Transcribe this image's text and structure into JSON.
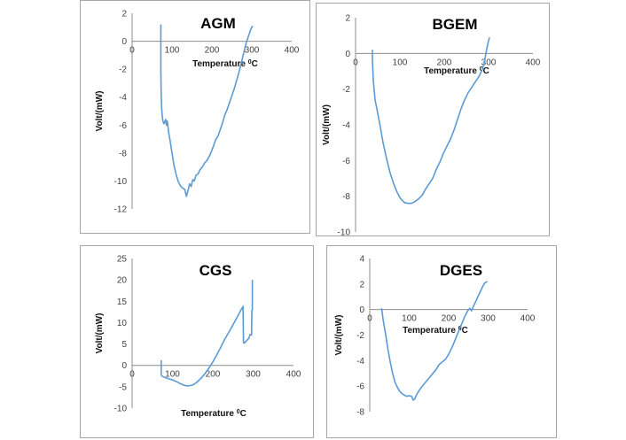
{
  "chart_data": [
    {
      "id": "agm",
      "type": "line",
      "title": "AGM",
      "xlabel": "Temperature",
      "xlabel_unit": "0C",
      "ylabel": "Volt/(mW)",
      "xlim": [
        0,
        400
      ],
      "ylim": [
        -12,
        2
      ],
      "xticks": [
        "0",
        "100",
        "200",
        "300",
        "400"
      ],
      "yticks": [
        "2",
        "0",
        "-2",
        "-4",
        "-6",
        "-8",
        "-10",
        "-12"
      ],
      "series": [
        {
          "color": "#5b9bd5",
          "x": [
            72,
            72,
            72,
            73,
            74,
            76,
            78,
            80,
            84,
            86,
            88,
            92,
            95,
            100,
            105,
            110,
            115,
            120,
            126,
            132,
            136,
            140,
            144,
            148,
            152,
            156,
            160,
            165,
            170,
            176,
            182,
            188,
            194,
            200,
            205,
            210,
            215,
            220,
            226,
            232,
            238,
            244,
            250,
            256,
            262,
            268,
            274,
            280,
            286,
            292,
            298,
            302
          ],
          "y": [
            1.2,
            0,
            -2.2,
            -3.8,
            -4.8,
            -5.5,
            -5.8,
            -5.9,
            -5.6,
            -6.0,
            -5.7,
            -6.6,
            -7.1,
            -8.0,
            -8.9,
            -9.5,
            -10.0,
            -10.3,
            -10.5,
            -10.6,
            -11.1,
            -10.7,
            -10.2,
            -10.4,
            -9.9,
            -10.0,
            -9.6,
            -9.5,
            -9.2,
            -9.0,
            -8.7,
            -8.5,
            -8.2,
            -7.8,
            -7.4,
            -7.0,
            -6.8,
            -6.4,
            -5.9,
            -5.3,
            -4.9,
            -4.4,
            -3.9,
            -3.4,
            -2.8,
            -2.2,
            -1.5,
            -0.8,
            -0.1,
            0.4,
            0.9,
            1.1
          ]
        }
      ]
    },
    {
      "id": "bgem",
      "type": "line",
      "title": "BGEM",
      "xlabel": "Temperature",
      "xlabel_unit": "0C",
      "ylabel": "Volt/(mW)",
      "xlim": [
        0,
        400
      ],
      "ylim": [
        -10,
        2
      ],
      "xticks": [
        "0",
        "100",
        "200",
        "300",
        "400"
      ],
      "yticks": [
        "2",
        "0",
        "-2",
        "-4",
        "-6",
        "-8",
        "-10"
      ],
      "series": [
        {
          "color": "#5b9bd5",
          "x": [
            38,
            38,
            40,
            44,
            48,
            55,
            62,
            70,
            78,
            86,
            94,
            102,
            110,
            118,
            126,
            134,
            142,
            150,
            158,
            166,
            174,
            182,
            190,
            198,
            206,
            214,
            222,
            230,
            238,
            246,
            254,
            262,
            270,
            278,
            284,
            290,
            294,
            298,
            302
          ],
          "y": [
            0.2,
            -0.3,
            -1.5,
            -2.6,
            -3.1,
            -4.0,
            -5.0,
            -5.9,
            -6.7,
            -7.3,
            -7.8,
            -8.15,
            -8.35,
            -8.4,
            -8.4,
            -8.3,
            -8.15,
            -7.95,
            -7.6,
            -7.3,
            -7.0,
            -6.5,
            -6.1,
            -5.6,
            -5.2,
            -4.8,
            -4.3,
            -3.7,
            -3.1,
            -2.6,
            -2.2,
            -1.9,
            -1.6,
            -1.3,
            -1.0,
            -0.6,
            0.0,
            0.5,
            0.9
          ]
        }
      ]
    },
    {
      "id": "cgs",
      "type": "line",
      "title": "CGS",
      "xlabel": "Temperature",
      "xlabel_unit": "0C",
      "ylabel": "Volt/(mW)",
      "xlim": [
        0,
        400
      ],
      "ylim": [
        -10,
        25
      ],
      "xticks": [
        "0",
        "100",
        "200",
        "300",
        "400"
      ],
      "yticks": [
        "25",
        "20",
        "15",
        "10",
        "5",
        "0",
        "-5",
        "-10"
      ],
      "series": [
        {
          "color": "#5b9bd5",
          "x": [
            72,
            72,
            74,
            80,
            90,
            100,
            110,
            120,
            130,
            140,
            150,
            160,
            170,
            180,
            190,
            200,
            210,
            220,
            230,
            240,
            250,
            260,
            270,
            275,
            276,
            278,
            284,
            290,
            292,
            296,
            297,
            298,
            298
          ],
          "y": [
            1.2,
            -2.2,
            -2.5,
            -2.8,
            -3.1,
            -3.4,
            -3.8,
            -4.3,
            -4.7,
            -4.8,
            -4.6,
            -4.0,
            -3.1,
            -2.0,
            -0.7,
            0.8,
            2.5,
            4.3,
            6.2,
            7.8,
            9.5,
            11.2,
            13.0,
            13.8,
            5.3,
            5.2,
            5.8,
            6.4,
            7.2,
            7.1,
            12.8,
            13.0,
            20.0
          ]
        }
      ]
    },
    {
      "id": "dges",
      "type": "line",
      "title": "DGES",
      "xlabel": "Temperature",
      "xlabel_unit": "0C",
      "ylabel": "Volt/(mW)",
      "xlim": [
        0,
        400
      ],
      "ylim": [
        -8,
        4
      ],
      "xticks": [
        "0",
        "100",
        "200",
        "300",
        "400"
      ],
      "yticks": [
        "4",
        "2",
        "0",
        "-2",
        "-4",
        "-6",
        "-8"
      ],
      "series": [
        {
          "color": "#5b9bd5",
          "x": [
            30,
            34,
            40,
            46,
            52,
            58,
            64,
            70,
            76,
            82,
            88,
            94,
            100,
            106,
            110,
            114,
            120,
            128,
            136,
            144,
            152,
            160,
            168,
            176,
            184,
            192,
            200,
            208,
            216,
            224,
            232,
            240,
            248,
            254,
            258,
            262,
            268,
            274,
            280,
            286,
            292,
            298
          ],
          "y": [
            0.1,
            -0.8,
            -1.9,
            -3.1,
            -4.1,
            -5.0,
            -5.7,
            -6.1,
            -6.4,
            -6.6,
            -6.7,
            -6.8,
            -6.75,
            -6.8,
            -7.1,
            -7.0,
            -6.6,
            -6.2,
            -5.9,
            -5.6,
            -5.3,
            -5.0,
            -4.7,
            -4.3,
            -4.1,
            -3.9,
            -3.5,
            -3.0,
            -2.4,
            -1.8,
            -1.2,
            -0.6,
            -0.1,
            0.1,
            -0.1,
            0.2,
            0.6,
            1.0,
            1.4,
            1.8,
            2.1,
            2.2
          ]
        }
      ]
    }
  ]
}
